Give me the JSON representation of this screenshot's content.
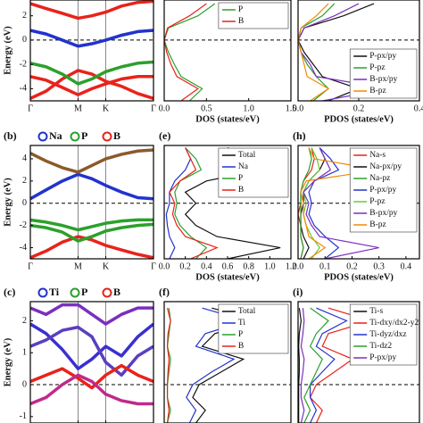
{
  "chart_data": [
    {
      "type": "band",
      "ylabel": "Energy (eV)",
      "ylim": [
        -5,
        3.3
      ],
      "yticks": [
        -4,
        -2,
        0,
        2
      ],
      "xlim": [
        0,
        2.58
      ],
      "xticks": [
        {
          "value": 0,
          "label": "Γ"
        },
        {
          "value": 1,
          "label": "M"
        },
        {
          "value": 1.58,
          "label": "K"
        },
        {
          "value": 2.58,
          "label": "Γ"
        }
      ],
      "fermi_level": 0,
      "x": [
        0,
        0.33,
        0.67,
        1,
        1.29,
        1.58,
        1.91,
        2.25,
        2.58
      ],
      "bands": [
        {
          "color": "#e8231a",
          "values": [
            -4.8,
            -4.2,
            -3.2,
            -2.5,
            -2.8,
            -3.4,
            -3.8,
            -4.4,
            -4.8
          ]
        },
        {
          "color": "#e8231a",
          "values": [
            -3,
            -3.3,
            -3.9,
            -4.5,
            -4,
            -3.6,
            -3.2,
            -3,
            -3
          ]
        },
        {
          "color": "#2ca02c",
          "values": [
            -1.9,
            -2.2,
            -2.8,
            -3.6,
            -3.2,
            -2.6,
            -2.2,
            -1.9,
            -1.8
          ]
        },
        {
          "color": "#2233cc",
          "values": [
            0.8,
            0.5,
            0,
            -0.5,
            -0.3,
            0,
            0.4,
            0.7,
            0.8
          ]
        },
        {
          "color": "#e8231a",
          "values": [
            3,
            2.6,
            2.2,
            1.8,
            2,
            2.3,
            2.8,
            3.1,
            3.2
          ]
        }
      ]
    },
    {
      "type": "dos",
      "xlabel": "DOS (states/eV)",
      "ylim": [
        -5,
        3.3
      ],
      "xlim": [
        0,
        1.5
      ],
      "xticks": [
        {
          "value": 0,
          "label": "0.0"
        },
        {
          "value": 0.5,
          "label": "0.5"
        },
        {
          "value": 1,
          "label": "1.0"
        },
        {
          "value": 1.5,
          "label": "1.5"
        }
      ],
      "fermi_level": 0,
      "legend_position": "upper right",
      "energy": [
        -5,
        -4,
        -3,
        -2,
        -1,
        0,
        1,
        2,
        3
      ],
      "series": [
        {
          "name": "P",
          "color": "#2ca02c",
          "values": [
            0.3,
            0.45,
            0.2,
            0.12,
            0.05,
            0,
            0.05,
            0.4,
            0.6
          ]
        },
        {
          "name": "B",
          "color": "#e8231a",
          "values": [
            0.2,
            0.4,
            0.15,
            0.08,
            0.03,
            0,
            0.04,
            0.3,
            0.5
          ]
        }
      ]
    },
    {
      "type": "dos",
      "xlabel": "PDOS (states/eV)",
      "ylim": [
        -5,
        3.3
      ],
      "xlim": [
        0,
        0.4
      ],
      "xticks": [
        {
          "value": 0,
          "label": "0.0"
        },
        0.2,
        0.4
      ],
      "fermi_level": 0,
      "legend_position": "lower right",
      "energy": [
        -5,
        -4,
        -3,
        -2,
        -1,
        0,
        1,
        2,
        3
      ],
      "series": [
        {
          "name": "P-px/py",
          "color": "#111111",
          "values": [
            0.1,
            0.2,
            0.08,
            0.05,
            0.02,
            0,
            0.02,
            0.15,
            0.25
          ]
        },
        {
          "name": "P-pz",
          "color": "#2ca02c",
          "values": [
            0.05,
            0.1,
            0.06,
            0.03,
            0.01,
            0,
            0.01,
            0.08,
            0.12
          ]
        },
        {
          "name": "B-px/py",
          "color": "#7b2fbe",
          "values": [
            0.08,
            0.3,
            0.06,
            0.04,
            0.01,
            0,
            0.02,
            0.12,
            0.2
          ]
        },
        {
          "name": "B-pz",
          "color": "#f08a00",
          "values": [
            0.04,
            0.1,
            0.03,
            0.02,
            0.01,
            0,
            0.01,
            0.06,
            0.1
          ]
        }
      ]
    },
    {
      "type": "band",
      "panel": "(b)",
      "ylabel": "Energy (eV)",
      "ylim": [
        -5,
        5.2
      ],
      "yticks": [
        -4,
        -2,
        0,
        2,
        4
      ],
      "xlim": [
        0,
        2.58
      ],
      "xticks": [
        {
          "value": 0,
          "label": "Γ"
        },
        {
          "value": 1,
          "label": "M"
        },
        {
          "value": 1.58,
          "label": "K"
        },
        {
          "value": 2.58,
          "label": "Γ"
        }
      ],
      "fermi_level": 0,
      "x": [
        0,
        0.33,
        0.67,
        1,
        1.29,
        1.58,
        1.91,
        2.25,
        2.58
      ],
      "legend": [
        {
          "name": "Na",
          "color": "#2233cc"
        },
        {
          "name": "P",
          "color": "#2ca02c"
        },
        {
          "name": "B",
          "color": "#e8231a"
        }
      ],
      "bands": [
        {
          "color": "#e8231a",
          "values": [
            -4.9,
            -4.3,
            -3.5,
            -3,
            -3.3,
            -3.8,
            -4.2,
            -4.6,
            -4.9
          ]
        },
        {
          "color": "#2ca02c",
          "values": [
            -2,
            -2.2,
            -2.6,
            -3.4,
            -3,
            -2.5,
            -2.2,
            -2,
            -1.9
          ]
        },
        {
          "color": "#2ca02c",
          "values": [
            -1.5,
            -1.7,
            -2,
            -2.4,
            -2.1,
            -1.8,
            -1.6,
            -1.5,
            -1.5
          ]
        },
        {
          "color": "#2233cc",
          "values": [
            0.4,
            1.2,
            2,
            2.6,
            2.2,
            1.6,
            1,
            0.5,
            0.4
          ]
        },
        {
          "color": "#8b5a2b",
          "values": [
            4.5,
            3.8,
            3.2,
            2.8,
            3.4,
            4,
            4.4,
            4.7,
            4.8
          ]
        }
      ]
    },
    {
      "type": "dos",
      "panel": "(e)",
      "xlabel": "DOS (states/eV)",
      "ylim": [
        -5,
        5.2
      ],
      "xlim": [
        0,
        1.2
      ],
      "xticks": [
        {
          "value": 0,
          "label": "0.0"
        },
        {
          "value": 0.2,
          "label": "0.2"
        },
        {
          "value": 0.4,
          "label": "0.4"
        },
        {
          "value": 0.6,
          "label": "0.6"
        },
        {
          "value": 0.8,
          "label": "0.8"
        },
        {
          "value": 1,
          "label": "1.0"
        },
        {
          "value": 1.2,
          "label": "1.2"
        }
      ],
      "fermi_level": 0,
      "legend_position": "upper right",
      "energy": [
        -5,
        -4,
        -3,
        -2,
        -1,
        0,
        1,
        2,
        3,
        4,
        5
      ],
      "series": [
        {
          "name": "Total",
          "color": "#111111",
          "values": [
            0.6,
            1.1,
            0.5,
            0.3,
            0.2,
            0.3,
            0.2,
            0.4,
            0.9,
            0.8,
            0.6
          ]
        },
        {
          "name": "Na",
          "color": "#2233cc",
          "values": [
            0.05,
            0.1,
            0.05,
            0.03,
            0.02,
            0.05,
            0.05,
            0.1,
            0.2,
            0.25,
            0.2
          ]
        },
        {
          "name": "P",
          "color": "#2ca02c",
          "values": [
            0.3,
            0.4,
            0.25,
            0.15,
            0.1,
            0.12,
            0.1,
            0.15,
            0.35,
            0.3,
            0.2
          ]
        },
        {
          "name": "B",
          "color": "#e8231a",
          "values": [
            0.25,
            0.5,
            0.2,
            0.12,
            0.08,
            0.1,
            0.05,
            0.15,
            0.3,
            0.25,
            0.2
          ]
        }
      ]
    },
    {
      "type": "dos",
      "panel": "(h)",
      "xlabel": "PDOS (states/eV)",
      "ylim": [
        -5,
        5.2
      ],
      "xlim": [
        0,
        0.45
      ],
      "xticks": [
        {
          "value": 0,
          "label": "0.0"
        },
        {
          "value": 0.1,
          "label": "0.1"
        },
        {
          "value": 0.2,
          "label": "0.2"
        },
        {
          "value": 0.3,
          "label": "0.3"
        },
        {
          "value": 0.4,
          "label": "0.4"
        }
      ],
      "fermi_level": 0,
      "legend_position": "upper right",
      "energy": [
        -5,
        -4,
        -3,
        -2,
        -1,
        0,
        1,
        2,
        3,
        4,
        5
      ],
      "series": [
        {
          "name": "Na-s",
          "color": "#e8231a",
          "values": [
            0.01,
            0.02,
            0.01,
            0.01,
            0,
            0.01,
            0.01,
            0.02,
            0.05,
            0.06,
            0.05
          ]
        },
        {
          "name": "Na-px/py",
          "color": "#111111",
          "values": [
            0.02,
            0.04,
            0.02,
            0.01,
            0.01,
            0.02,
            0.02,
            0.04,
            0.08,
            0.1,
            0.08
          ]
        },
        {
          "name": "Na-pz",
          "color": "#2ca02c",
          "values": [
            0.01,
            0.02,
            0.01,
            0.01,
            0.01,
            0.01,
            0.01,
            0.02,
            0.04,
            0.05,
            0.04
          ]
        },
        {
          "name": "P-px/py",
          "color": "#2233cc",
          "values": [
            0.1,
            0.15,
            0.1,
            0.06,
            0.04,
            0.05,
            0.04,
            0.06,
            0.15,
            0.12,
            0.08
          ]
        },
        {
          "name": "P-pz",
          "color": "#66cc33",
          "values": [
            0.05,
            0.08,
            0.05,
            0.03,
            0.02,
            0.03,
            0.02,
            0.04,
            0.08,
            0.07,
            0.05
          ]
        },
        {
          "name": "B-px/py",
          "color": "#7b2fbe",
          "values": [
            0.1,
            0.3,
            0.08,
            0.05,
            0.03,
            0.04,
            0.02,
            0.06,
            0.12,
            0.1,
            0.08
          ]
        },
        {
          "name": "B-pz",
          "color": "#f08a00",
          "values": [
            0.04,
            0.1,
            0.04,
            0.03,
            0.02,
            0.02,
            0.01,
            0.03,
            0.3,
            0.06,
            0.04
          ]
        }
      ]
    },
    {
      "type": "band",
      "panel": "(c)",
      "ylabel": "Energy (eV)",
      "ylim": [
        -1.2,
        2.6
      ],
      "yticks": [
        -1,
        0,
        1,
        2
      ],
      "xlim": [
        0,
        2.58
      ],
      "xticks": [
        {
          "value": 0,
          "label": "Γ"
        },
        {
          "value": 1,
          "label": "M"
        },
        {
          "value": 1.58,
          "label": "K"
        },
        {
          "value": 2.58,
          "label": "Γ"
        }
      ],
      "fermi_level": 0,
      "x": [
        0,
        0.33,
        0.67,
        1,
        1.29,
        1.58,
        1.91,
        2.25,
        2.58
      ],
      "legend": [
        {
          "name": "Ti",
          "color": "#2233cc"
        },
        {
          "name": "P",
          "color": "#2ca02c"
        },
        {
          "name": "B",
          "color": "#e8231a"
        }
      ],
      "bands": [
        {
          "color": "#3a2fd0",
          "values": [
            1.9,
            1.6,
            1.1,
            0.5,
            0.8,
            1.2,
            0.9,
            1.5,
            1.9
          ]
        },
        {
          "color": "#5a3fc0",
          "values": [
            1.2,
            1.4,
            1.7,
            1.8,
            1.5,
            0.7,
            0.3,
            0.9,
            1.2
          ]
        },
        {
          "color": "#e8231a",
          "values": [
            0.1,
            0.3,
            0.5,
            0.2,
            -0.1,
            0.3,
            0.6,
            0.3,
            0.1
          ]
        },
        {
          "color": "#c02a8a",
          "values": [
            -0.6,
            -0.4,
            0,
            0.3,
            0.1,
            -0.3,
            -0.5,
            -0.6,
            -0.6
          ]
        },
        {
          "color": "#7b2fbe",
          "values": [
            2.4,
            2.2,
            2.5,
            2.5,
            2.2,
            1.9,
            2.2,
            2.4,
            2.4
          ]
        }
      ]
    },
    {
      "type": "dos",
      "panel": "(f)",
      "ylim": [
        -1.2,
        2.6
      ],
      "xlim": [
        0,
        4
      ],
      "xticks": [],
      "fermi_level": 0,
      "legend_position": "upper right",
      "energy": [
        -1.2,
        -0.8,
        -0.4,
        0,
        0.4,
        0.8,
        1.2,
        1.6,
        2,
        2.4
      ],
      "series": [
        {
          "name": "Total",
          "color": "#111111",
          "values": [
            1,
            1.3,
            0.9,
            1.1,
            1.8,
            2.5,
            1.2,
            1.6,
            3,
            1.5
          ]
        },
        {
          "name": "Ti",
          "color": "#2233cc",
          "values": [
            0.8,
            1,
            0.7,
            0.9,
            1.5,
            2.2,
            1,
            1.3,
            2.6,
            1.2
          ]
        },
        {
          "name": "P",
          "color": "#2ca02c",
          "values": [
            0.1,
            0.2,
            0.1,
            0.1,
            0.15,
            0.2,
            0.1,
            0.15,
            0.2,
            0.15
          ]
        },
        {
          "name": "B",
          "color": "#e8231a",
          "values": [
            0.1,
            0.15,
            0.1,
            0.1,
            0.12,
            0.15,
            0.1,
            0.12,
            0.2,
            0.1
          ]
        }
      ]
    },
    {
      "type": "dos",
      "panel": "(i)",
      "ylim": [
        -1.2,
        2.6
      ],
      "xlim": [
        0,
        2
      ],
      "xticks": [],
      "fermi_level": 0,
      "legend_position": "upper right",
      "energy": [
        -1.2,
        -0.8,
        -0.4,
        0,
        0.4,
        0.8,
        1.2,
        1.6,
        2,
        2.4
      ],
      "series": [
        {
          "name": "Ti-s",
          "color": "#111111",
          "values": [
            0.01,
            0.01,
            0.01,
            0.01,
            0.02,
            0.02,
            0.01,
            0.02,
            0.05,
            0.02
          ]
        },
        {
          "name": "Ti-dxy/dx2-y2",
          "color": "#e8231a",
          "values": [
            0.3,
            0.4,
            0.2,
            0.3,
            0.6,
            0.9,
            0.4,
            0.5,
            1.2,
            0.5
          ]
        },
        {
          "name": "Ti-dyz/dxz",
          "color": "#2233cc",
          "values": [
            0.2,
            0.3,
            0.2,
            0.2,
            0.4,
            0.6,
            0.3,
            0.4,
            0.8,
            0.3
          ]
        },
        {
          "name": "Ti-dz2",
          "color": "#2ca02c",
          "values": [
            0.1,
            0.2,
            0.1,
            0.2,
            0.3,
            0.4,
            0.2,
            0.3,
            0.5,
            0.2
          ]
        },
        {
          "name": "P-px/py",
          "color": "#7b2fbe",
          "values": [
            0.05,
            0.1,
            0.05,
            0.05,
            0.08,
            0.1,
            0.05,
            0.08,
            0.1,
            0.08
          ]
        }
      ]
    }
  ]
}
